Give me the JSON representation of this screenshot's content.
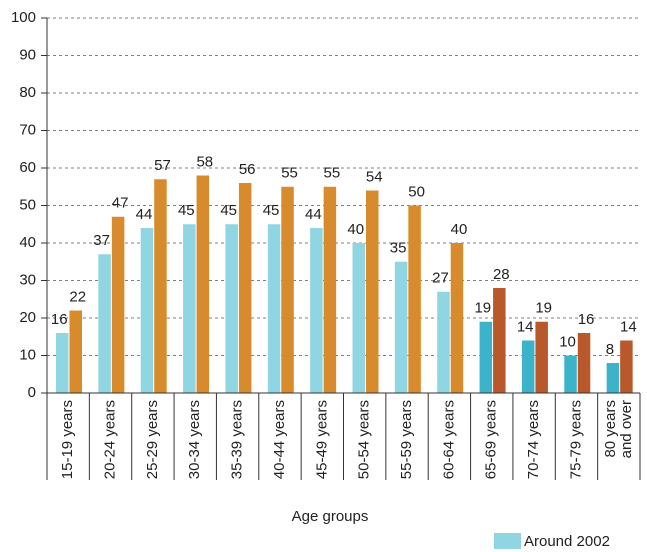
{
  "chart_data": {
    "type": "bar",
    "x_label": "Age groups",
    "categories": [
      "15-19 years",
      "20-24 years",
      "25-29 years",
      "30-34 years",
      "35-39 years",
      "40-44 years",
      "45-49 years",
      "50-54 years",
      "55-59 years",
      "60-64 years",
      "65-69 years",
      "70-74 years",
      "75-79 years",
      "80 years and over"
    ],
    "series": [
      {
        "name": "Around 2002",
        "color": "#8fd5e2",
        "colors": [
          "#8fd5e2",
          "#8fd5e2",
          "#8fd5e2",
          "#8fd5e2",
          "#8fd5e2",
          "#8fd5e2",
          "#8fd5e2",
          "#8fd5e2",
          "#8fd5e2",
          "#8fd5e2",
          "#3db3c9",
          "#3db3c9",
          "#3db3c9",
          "#3db3c9"
        ],
        "values": [
          16,
          37,
          44,
          45,
          45,
          45,
          44,
          40,
          35,
          27,
          19,
          14,
          10,
          8
        ]
      },
      {
        "color": "#d88b2c",
        "colors": [
          "#d88b2c",
          "#d88b2c",
          "#d88b2c",
          "#d88b2c",
          "#d88b2c",
          "#d88b2c",
          "#d88b2c",
          "#d88b2c",
          "#d88b2c",
          "#d88b2c",
          "#b9582b",
          "#b9582b",
          "#b9582b",
          "#b9582b"
        ],
        "values": [
          22,
          47,
          57,
          58,
          56,
          55,
          55,
          54,
          50,
          40,
          28,
          19,
          16,
          14
        ]
      }
    ],
    "ylim": [
      0,
      100
    ],
    "yticks": [
      0,
      10,
      20,
      30,
      40,
      50,
      60,
      70,
      80,
      90,
      100
    ],
    "grid": true
  }
}
